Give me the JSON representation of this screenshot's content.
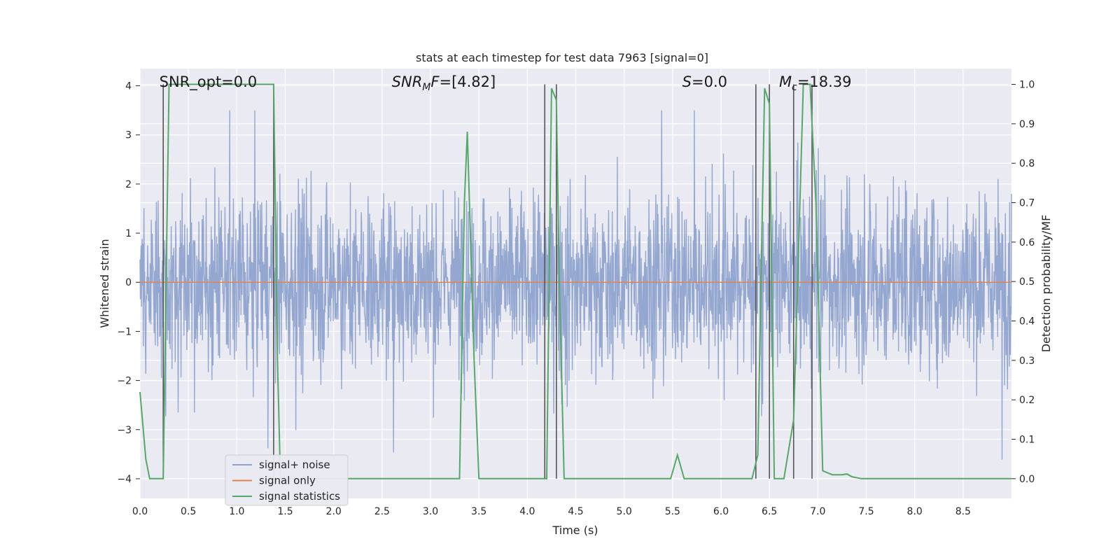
{
  "chart_data": {
    "type": "line",
    "title": "stats at each timestep for test data 7963 [signal=0]",
    "xlabel": "Time (s)",
    "ylabel_left": "Whitened strain",
    "ylabel_right": "Detection probability/MF",
    "xlim": [
      0.0,
      9.0
    ],
    "ylim_left": [
      -4.4,
      4.35
    ],
    "ylim_right": [
      -0.05,
      1.04
    ],
    "x_ticks": [
      0.0,
      0.5,
      1.0,
      1.5,
      2.0,
      2.5,
      3.0,
      3.5,
      4.0,
      4.5,
      5.0,
      5.5,
      6.0,
      6.5,
      7.0,
      7.5,
      8.0,
      8.5
    ],
    "x_tick_labels": [
      "0.0",
      "0.5",
      "1.0",
      "1.5",
      "2.0",
      "2.5",
      "3.0",
      "3.5",
      "4.0",
      "4.5",
      "5.0",
      "5.5",
      "6.0",
      "6.5",
      "7.0",
      "7.5",
      "8.0",
      "8.5"
    ],
    "y_left_ticks": [
      4,
      3,
      2,
      1,
      0,
      -1,
      -2,
      -3,
      -4
    ],
    "y_left_tick_labels": [
      "4",
      "3",
      "2",
      "1",
      "0",
      "−1",
      "−2",
      "−3",
      "−4"
    ],
    "y_right_ticks": [
      1.0,
      0.9,
      0.8,
      0.7,
      0.6,
      0.5,
      0.4,
      0.3,
      0.2,
      0.1,
      0.0
    ],
    "y_right_tick_labels": [
      "1.0",
      "0.9",
      "0.8",
      "0.7",
      "0.6",
      "0.5",
      "0.4",
      "0.3",
      "0.2",
      "0.1",
      "0.0"
    ],
    "grid": true,
    "legend_position": "lower-left",
    "series": [
      {
        "name": "signal+ noise",
        "axis": "left",
        "color": "#8fa3cd",
        "style": "dense noise, roughly ±1.5 amplitude with peaks up to about ±3.5",
        "amplitude_envelope": 1.6,
        "peak_max": 3.5,
        "peak_min": -4.0
      },
      {
        "name": "signal only",
        "axis": "left",
        "color": "#dd8452",
        "x": [
          0.0,
          9.0
        ],
        "y": [
          0.0,
          0.0
        ]
      },
      {
        "name": "signal statistics",
        "axis": "right",
        "color": "#55a868",
        "x": [
          0.0,
          0.06,
          0.1,
          0.24,
          0.27,
          0.3,
          0.32,
          0.4,
          1.2,
          1.38,
          1.42,
          1.45,
          3.0,
          3.3,
          3.35,
          3.38,
          3.45,
          3.5,
          4.15,
          4.2,
          4.25,
          4.3,
          4.33,
          4.38,
          4.45,
          5.48,
          5.55,
          5.62,
          6.32,
          6.38,
          6.45,
          6.5,
          6.55,
          6.65,
          6.75,
          6.85,
          6.92,
          6.98,
          7.05,
          7.15,
          7.25,
          7.3,
          7.35,
          7.45,
          9.0
        ],
        "y": [
          0.22,
          0.05,
          0.0,
          0.0,
          0.5,
          1.0,
          1.0,
          1.0,
          1.0,
          1.0,
          0.3,
          0.0,
          0.0,
          0.0,
          0.7,
          0.88,
          0.3,
          0.0,
          0.0,
          0.0,
          0.99,
          0.96,
          0.5,
          0.0,
          0.0,
          0.0,
          0.06,
          0.0,
          0.0,
          0.06,
          0.99,
          0.95,
          0.0,
          0.0,
          0.15,
          1.0,
          1.0,
          0.7,
          0.02,
          0.01,
          0.01,
          0.012,
          0.005,
          0.0,
          0.0
        ]
      }
    ],
    "vertical_markers": {
      "color": "#555555",
      "x": [
        0.24,
        1.38,
        4.18,
        4.3,
        6.36,
        6.5,
        6.75,
        6.94
      ]
    },
    "annotations": [
      {
        "text_parts": [
          [
            "SNR_opt=0.0",
            "normal"
          ]
        ],
        "data_x": 0.2
      },
      {
        "text_parts": [
          [
            "SNR",
            "italic"
          ],
          [
            "M",
            "italic-sub"
          ],
          [
            "F",
            "italic"
          ],
          [
            "=[4.82]",
            "normal"
          ]
        ],
        "data_x": 2.6
      },
      {
        "text_parts": [
          [
            "S",
            "italic"
          ],
          [
            "=0.0",
            "normal"
          ]
        ],
        "data_x": 5.6
      },
      {
        "text_parts": [
          [
            "M",
            "italic"
          ],
          [
            "c",
            "italic-sub"
          ],
          [
            "=18.39",
            "normal"
          ]
        ],
        "data_x": 6.6
      }
    ]
  }
}
